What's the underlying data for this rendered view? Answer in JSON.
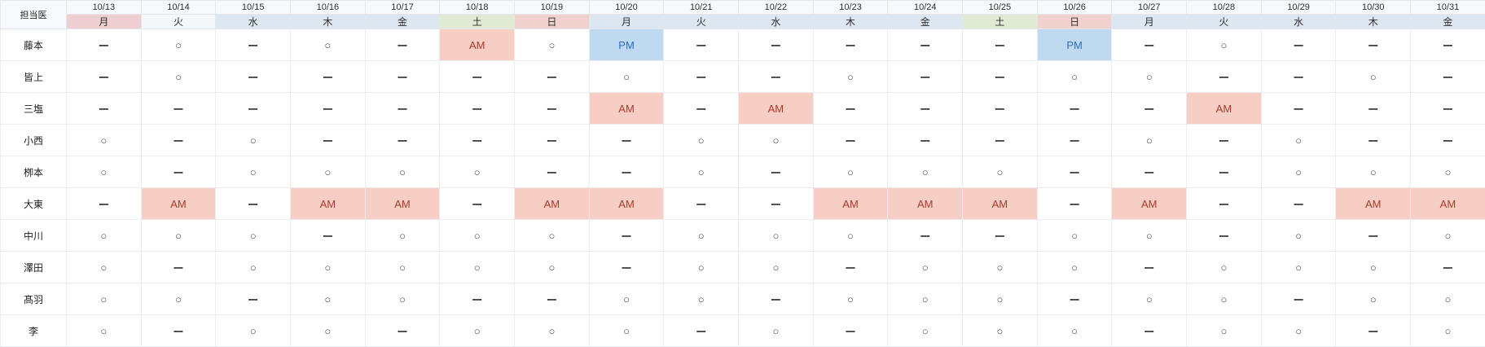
{
  "table": {
    "corner_label": "担当医",
    "columns": [
      {
        "date": "10/13",
        "weekday": "月",
        "kind": "holiday"
      },
      {
        "date": "10/14",
        "weekday": "火",
        "kind": "plain"
      },
      {
        "date": "10/15",
        "weekday": "水",
        "kind": "weekday"
      },
      {
        "date": "10/16",
        "weekday": "木",
        "kind": "weekday"
      },
      {
        "date": "10/17",
        "weekday": "金",
        "kind": "weekday"
      },
      {
        "date": "10/18",
        "weekday": "土",
        "kind": "saturday"
      },
      {
        "date": "10/19",
        "weekday": "日",
        "kind": "sunday"
      },
      {
        "date": "10/20",
        "weekday": "月",
        "kind": "weekday"
      },
      {
        "date": "10/21",
        "weekday": "火",
        "kind": "weekday"
      },
      {
        "date": "10/22",
        "weekday": "水",
        "kind": "weekday"
      },
      {
        "date": "10/23",
        "weekday": "木",
        "kind": "weekday"
      },
      {
        "date": "10/24",
        "weekday": "金",
        "kind": "weekday"
      },
      {
        "date": "10/25",
        "weekday": "土",
        "kind": "saturday"
      },
      {
        "date": "10/26",
        "weekday": "日",
        "kind": "sunday"
      },
      {
        "date": "10/27",
        "weekday": "月",
        "kind": "weekday"
      },
      {
        "date": "10/28",
        "weekday": "火",
        "kind": "weekday"
      },
      {
        "date": "10/29",
        "weekday": "水",
        "kind": "weekday"
      },
      {
        "date": "10/30",
        "weekday": "木",
        "kind": "weekday"
      },
      {
        "date": "10/31",
        "weekday": "金",
        "kind": "weekday"
      }
    ],
    "rows": [
      {
        "doctor": "藤本",
        "cells": [
          "ー",
          "○",
          "ー",
          "○",
          "ー",
          "AM",
          "○",
          "PM",
          "ー",
          "ー",
          "ー",
          "ー",
          "ー",
          "PM",
          "ー",
          "○",
          "ー",
          "ー",
          "ー"
        ]
      },
      {
        "doctor": "皆上",
        "cells": [
          "ー",
          "○",
          "ー",
          "ー",
          "ー",
          "ー",
          "ー",
          "○",
          "ー",
          "ー",
          "○",
          "ー",
          "ー",
          "○",
          "○",
          "ー",
          "ー",
          "○",
          "ー"
        ]
      },
      {
        "doctor": "三塩",
        "cells": [
          "ー",
          "ー",
          "ー",
          "ー",
          "ー",
          "ー",
          "ー",
          "AM",
          "ー",
          "AM",
          "ー",
          "ー",
          "ー",
          "ー",
          "ー",
          "AM",
          "ー",
          "ー",
          "ー"
        ]
      },
      {
        "doctor": "小西",
        "cells": [
          "○",
          "ー",
          "○",
          "ー",
          "ー",
          "ー",
          "ー",
          "ー",
          "○",
          "○",
          "ー",
          "ー",
          "ー",
          "ー",
          "○",
          "ー",
          "○",
          "ー",
          "ー"
        ]
      },
      {
        "doctor": "栁本",
        "cells": [
          "○",
          "ー",
          "○",
          "○",
          "○",
          "○",
          "ー",
          "ー",
          "○",
          "ー",
          "○",
          "○",
          "○",
          "ー",
          "ー",
          "ー",
          "○",
          "○",
          "○"
        ]
      },
      {
        "doctor": "大東",
        "cells": [
          "ー",
          "AM",
          "ー",
          "AM",
          "AM",
          "ー",
          "AM",
          "AM",
          "ー",
          "ー",
          "AM",
          "AM",
          "AM",
          "ー",
          "AM",
          "ー",
          "ー",
          "AM",
          "AM"
        ]
      },
      {
        "doctor": "中川",
        "cells": [
          "○",
          "○",
          "○",
          "ー",
          "○",
          "○",
          "○",
          "ー",
          "○",
          "○",
          "○",
          "ー",
          "ー",
          "○",
          "○",
          "ー",
          "○",
          "ー",
          "○"
        ]
      },
      {
        "doctor": "澤田",
        "cells": [
          "○",
          "ー",
          "○",
          "○",
          "○",
          "○",
          "○",
          "ー",
          "○",
          "○",
          "ー",
          "○",
          "○",
          "○",
          "ー",
          "○",
          "○",
          "○",
          "ー"
        ]
      },
      {
        "doctor": "髙羽",
        "cells": [
          "○",
          "○",
          "ー",
          "○",
          "○",
          "ー",
          "ー",
          "○",
          "○",
          "ー",
          "○",
          "○",
          "○",
          "ー",
          "○",
          "○",
          "ー",
          "○",
          "○"
        ]
      },
      {
        "doctor": "李",
        "cells": [
          "○",
          "ー",
          "○",
          "○",
          "ー",
          "○",
          "○",
          "○",
          "ー",
          "○",
          "ー",
          "○",
          "○",
          "○",
          "ー",
          "○",
          "○",
          "ー",
          "○"
        ]
      }
    ]
  },
  "symbols": {
    "available": "○",
    "unavailable": "ー",
    "am": "AM",
    "pm": "PM"
  },
  "colors": {
    "weekday_header_bg": "#dde7f1",
    "plain_header_bg": "#f5f8fb",
    "saturday_header_bg": "#e1ead3",
    "sunday_header_bg": "#f1d1ce",
    "holiday_header_bg": "#f0cfd2",
    "date_row_bg": "#f7f9fc",
    "corner_bg": "#eaeff5",
    "am_bg": "#f6cec3",
    "am_text": "#a83a2c",
    "pm_bg": "#bed9f0",
    "pm_text": "#2d6ec3",
    "grid_line": "#eaecef"
  }
}
